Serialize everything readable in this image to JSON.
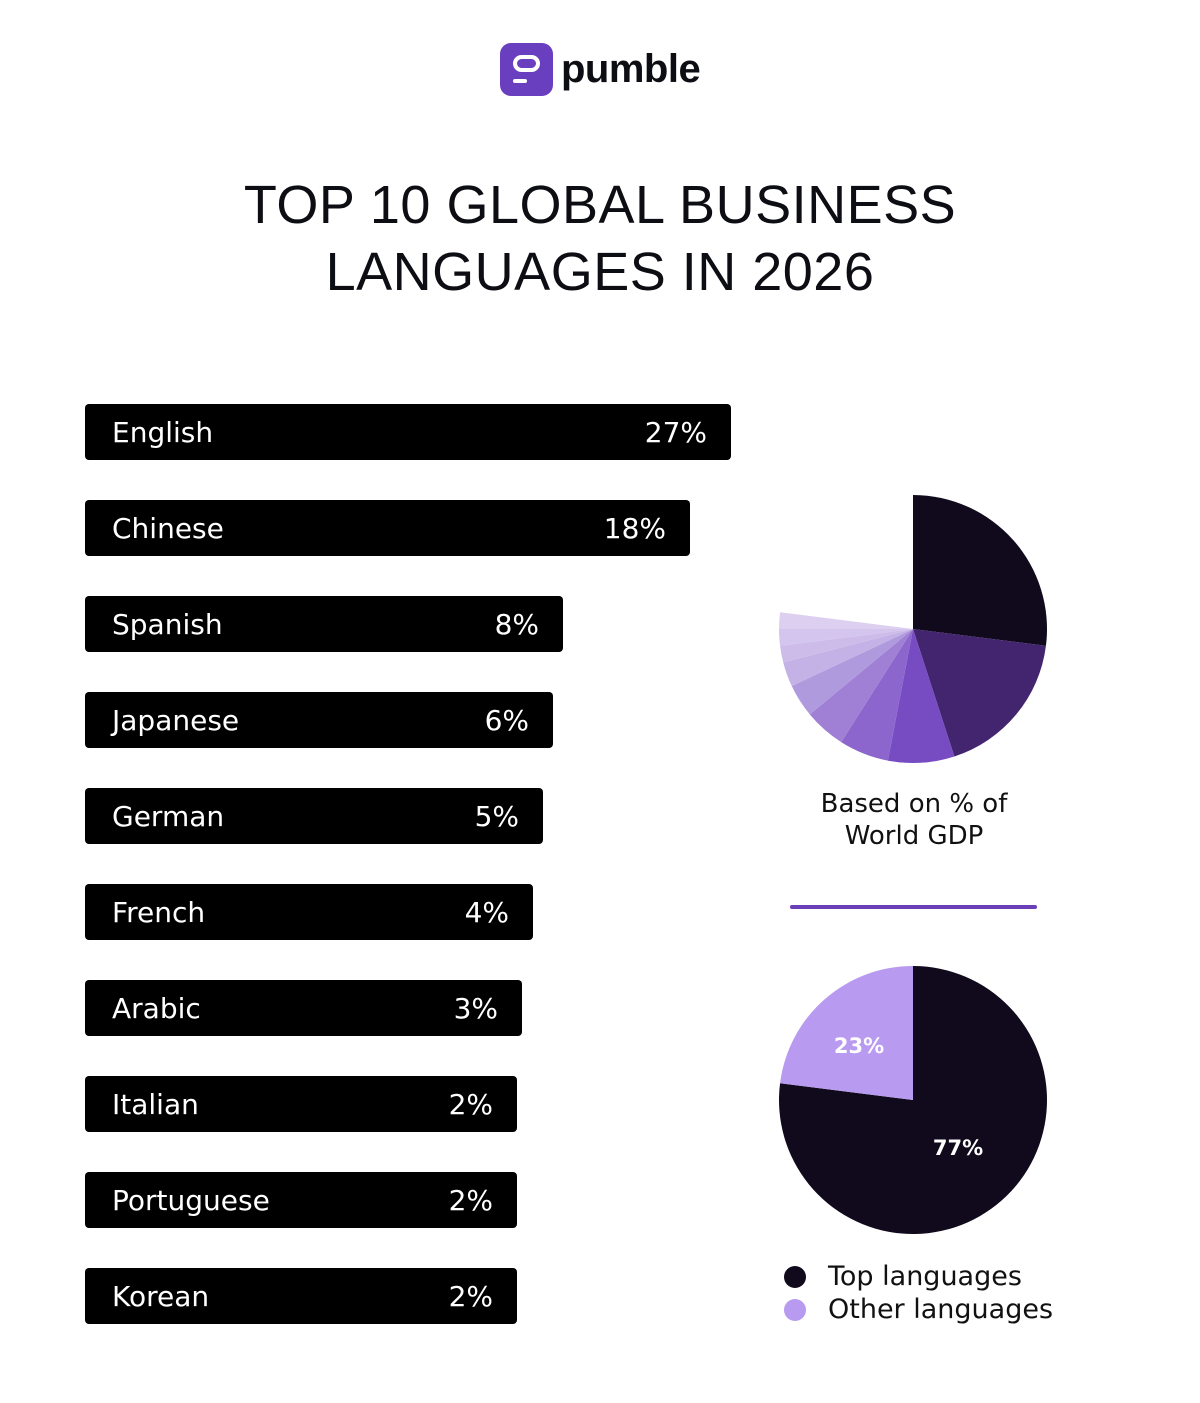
{
  "brand": {
    "name": "pumble",
    "color": "#6a3fbf"
  },
  "chart_data": [
    {
      "type": "bar",
      "orientation": "horizontal",
      "title": "TOP 10 GLOBAL BUSINESS LANGUAGES IN 2026",
      "categories": [
        "English",
        "Chinese",
        "Spanish",
        "Japanese",
        "German",
        "French",
        "Arabic",
        "Italian",
        "Portuguese",
        "Korean"
      ],
      "values": [
        27,
        18,
        8,
        6,
        5,
        4,
        3,
        2,
        2,
        2
      ],
      "value_labels": [
        "27%",
        "18%",
        "8%",
        "6%",
        "5%",
        "4%",
        "3%",
        "2%",
        "2%",
        "2%"
      ],
      "bar_color": "#000000"
    },
    {
      "type": "pie",
      "caption": "Based on % of World GDP",
      "categories": [
        "English",
        "Chinese",
        "Spanish",
        "Japanese",
        "German",
        "French",
        "Arabic",
        "Italian",
        "Portuguese",
        "Korean"
      ],
      "values": [
        27,
        18,
        8,
        6,
        5,
        4,
        3,
        2,
        2,
        2
      ],
      "colors": [
        "#100a1c",
        "#42246f",
        "#774bc2",
        "#8c66cc",
        "#a080d4",
        "#b09ade",
        "#c4b2e6",
        "#cdbcea",
        "#d4c5ee",
        "#dccff0"
      ]
    },
    {
      "type": "pie",
      "series": [
        {
          "name": "Top languages",
          "value": 77,
          "label": "77%",
          "color": "#100a1c"
        },
        {
          "name": "Other languages",
          "value": 23,
          "label": "23%",
          "color": "#b89af0"
        }
      ],
      "legend": "bottom"
    }
  ]
}
